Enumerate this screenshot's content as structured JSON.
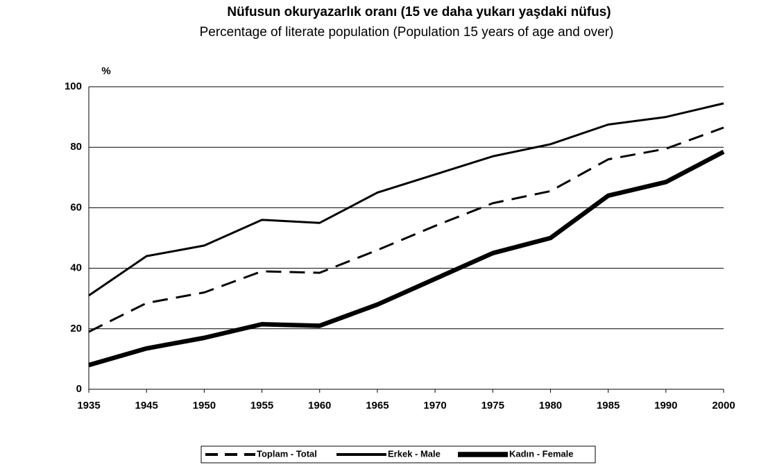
{
  "chart_data": {
    "type": "line",
    "title": "Nüfusun okuryazarlık oranı (15 ve daha yukarı yaşdaki nüfus)",
    "subtitle": "Percentage of literate population (Population 15 years of age and over)",
    "y_label": "%",
    "categories": [
      "1935",
      "1945",
      "1950",
      "1955",
      "1960",
      "1965",
      "1970",
      "1975",
      "1980",
      "1985",
      "1990",
      "2000"
    ],
    "series": [
      {
        "name": "Toplam - Total",
        "color": "#000000",
        "style": "dashed",
        "values": [
          19,
          28.5,
          32,
          39,
          38.5,
          46,
          54,
          61.5,
          65.5,
          76,
          79.5,
          86.5
        ]
      },
      {
        "name": "Erkek - Male",
        "color": "#000000",
        "style": "solid",
        "values": [
          31,
          44,
          47.5,
          56,
          55,
          65,
          71,
          77,
          81,
          87.5,
          90,
          94.5
        ]
      },
      {
        "name": "Kadın -  Female",
        "color": "#000000",
        "style": "bold",
        "values": [
          8,
          13.5,
          17,
          21.5,
          21,
          28,
          36.5,
          45,
          50,
          64,
          68.5,
          78.5
        ]
      }
    ],
    "ylim": [
      0,
      100
    ],
    "yticks": [
      0,
      20,
      40,
      60,
      80,
      100
    ],
    "grid": true,
    "legend": "bottom"
  }
}
